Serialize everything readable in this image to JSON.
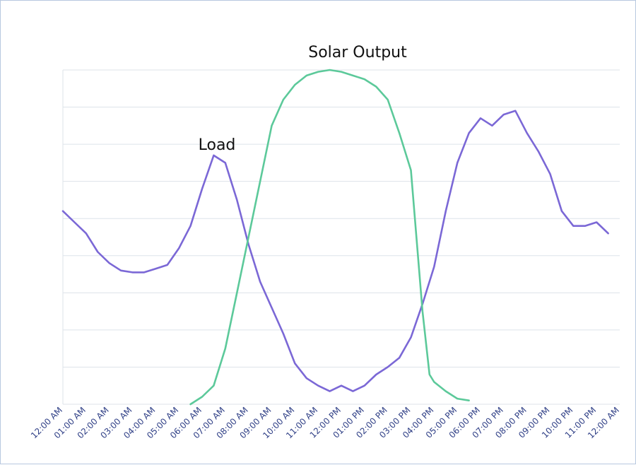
{
  "chart_data": {
    "type": "line",
    "title": "",
    "xlabel": "",
    "ylabel": "",
    "ylim": [
      0,
      9
    ],
    "grid": true,
    "x_ticks": [
      "12:00 AM",
      "01:00 AM",
      "02:00 AM",
      "03:00 AM",
      "04:00 AM",
      "05:00 AM",
      "06:00 AM",
      "07:00 AM",
      "08:00 AM",
      "09:00 AM",
      "10:00 AM",
      "11:00 AM",
      "12:00 PM",
      "01:00 PM",
      "02:00 PM",
      "03:00 PM",
      "04:00 PM",
      "05:00 PM",
      "06:00 PM",
      "07:00 PM",
      "08:00 PM",
      "09:00 PM",
      "10:00 PM",
      "11:00 PM",
      "12:00 AM"
    ],
    "series": [
      {
        "name": "Load",
        "color": "#7b68d6",
        "points": [
          [
            0,
            5.2
          ],
          [
            0.5,
            4.9
          ],
          [
            1,
            4.6
          ],
          [
            1.5,
            4.1
          ],
          [
            2,
            3.8
          ],
          [
            2.5,
            3.6
          ],
          [
            3,
            3.55
          ],
          [
            3.5,
            3.55
          ],
          [
            4,
            3.65
          ],
          [
            4.5,
            3.75
          ],
          [
            5,
            4.2
          ],
          [
            5.5,
            4.8
          ],
          [
            6,
            5.8
          ],
          [
            6.5,
            6.7
          ],
          [
            7,
            6.5
          ],
          [
            7.5,
            5.5
          ],
          [
            8,
            4.3
          ],
          [
            8.5,
            3.3
          ],
          [
            9,
            2.6
          ],
          [
            9.5,
            1.9
          ],
          [
            10,
            1.1
          ],
          [
            10.5,
            0.7
          ],
          [
            11,
            0.5
          ],
          [
            11.5,
            0.35
          ],
          [
            12,
            0.5
          ],
          [
            12.5,
            0.35
          ],
          [
            13,
            0.5
          ],
          [
            13.5,
            0.8
          ],
          [
            14,
            1.0
          ],
          [
            14.5,
            1.25
          ],
          [
            15,
            1.8
          ],
          [
            15.5,
            2.7
          ],
          [
            16,
            3.7
          ],
          [
            16.5,
            5.2
          ],
          [
            17,
            6.5
          ],
          [
            17.5,
            7.3
          ],
          [
            18,
            7.7
          ],
          [
            18.5,
            7.5
          ],
          [
            19,
            7.8
          ],
          [
            19.5,
            7.9
          ],
          [
            20,
            7.3
          ],
          [
            20.5,
            6.8
          ],
          [
            21,
            6.2
          ],
          [
            21.5,
            5.2
          ],
          [
            22,
            4.8
          ],
          [
            22.5,
            4.8
          ],
          [
            23,
            4.9
          ],
          [
            23.5,
            4.6
          ]
        ]
      },
      {
        "name": "Solar Output",
        "color": "#5cc99a",
        "points": [
          [
            5.5,
            0
          ],
          [
            6,
            0.2
          ],
          [
            6.5,
            0.5
          ],
          [
            7,
            1.5
          ],
          [
            7.5,
            3
          ],
          [
            8,
            4.5
          ],
          [
            8.5,
            6
          ],
          [
            9,
            7.5
          ],
          [
            9.5,
            8.2
          ],
          [
            10,
            8.6
          ],
          [
            10.5,
            8.85
          ],
          [
            11,
            8.95
          ],
          [
            11.5,
            9.0
          ],
          [
            12,
            8.95
          ],
          [
            12.5,
            8.85
          ],
          [
            13,
            8.75
          ],
          [
            13.5,
            8.55
          ],
          [
            14,
            8.2
          ],
          [
            14.5,
            7.3
          ],
          [
            15,
            6.3
          ],
          [
            15.5,
            2.5
          ],
          [
            15.8,
            0.8
          ],
          [
            16,
            0.6
          ],
          [
            16.5,
            0.35
          ],
          [
            17,
            0.15
          ],
          [
            17.5,
            0.1
          ]
        ]
      }
    ]
  }
}
